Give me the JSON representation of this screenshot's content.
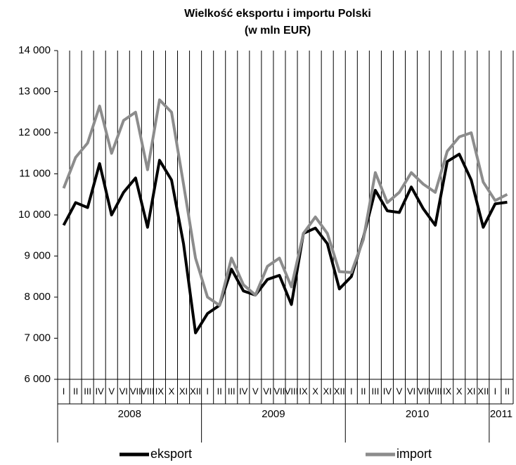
{
  "chart_data": {
    "type": "line",
    "title": "Wielkość eksportu i importu Polski",
    "subtitle": "(w mln EUR)",
    "categories": [
      "I",
      "II",
      "III",
      "IV",
      "V",
      "VI",
      "VII",
      "VIII",
      "IX",
      "X",
      "XI",
      "XII",
      "I",
      "II",
      "III",
      "IV",
      "V",
      "VI",
      "VII",
      "VIII",
      "IX",
      "X",
      "XI",
      "XII",
      "I",
      "II",
      "III",
      "IV",
      "V",
      "VI",
      "VII",
      "VIII",
      "IX",
      "X",
      "XI",
      "XII",
      "I",
      "II"
    ],
    "years": [
      {
        "label": "2008",
        "months": 12
      },
      {
        "label": "2009",
        "months": 12
      },
      {
        "label": "2010",
        "months": 12
      },
      {
        "label": "2011",
        "months": 2
      }
    ],
    "series": [
      {
        "name": "eksport",
        "color": "#000000",
        "values": [
          9750,
          10300,
          10180,
          11250,
          10000,
          10550,
          10900,
          9700,
          11330,
          10850,
          9300,
          7130,
          7600,
          7800,
          8680,
          8150,
          8050,
          8430,
          8530,
          7820,
          9550,
          9680,
          9300,
          8200,
          8500,
          9450,
          10600,
          10100,
          10060,
          10680,
          10150,
          9750,
          11300,
          11480,
          10850,
          9700,
          10270,
          10310
        ]
      },
      {
        "name": "import",
        "color": "#8c8c8c",
        "values": [
          10650,
          11400,
          11750,
          12650,
          11500,
          12300,
          12500,
          11100,
          12800,
          12500,
          10750,
          8950,
          8000,
          7800,
          8950,
          8300,
          8050,
          8750,
          8950,
          8250,
          9550,
          9950,
          9550,
          8620,
          8600,
          9400,
          11030,
          10300,
          10550,
          11030,
          10750,
          10550,
          11550,
          11900,
          12000,
          10800,
          10350,
          10500
        ]
      }
    ],
    "ylim": [
      6000,
      14000
    ],
    "yticks": [
      {
        "value": 6000,
        "label": "6 000"
      },
      {
        "value": 7000,
        "label": "7 000"
      },
      {
        "value": 8000,
        "label": "8 000"
      },
      {
        "value": 9000,
        "label": "9 000"
      },
      {
        "value": 10000,
        "label": "10 000"
      },
      {
        "value": 11000,
        "label": "11 000"
      },
      {
        "value": 12000,
        "label": "12 000"
      },
      {
        "value": 13000,
        "label": "13 000"
      },
      {
        "value": 14000,
        "label": "14 000"
      }
    ]
  }
}
